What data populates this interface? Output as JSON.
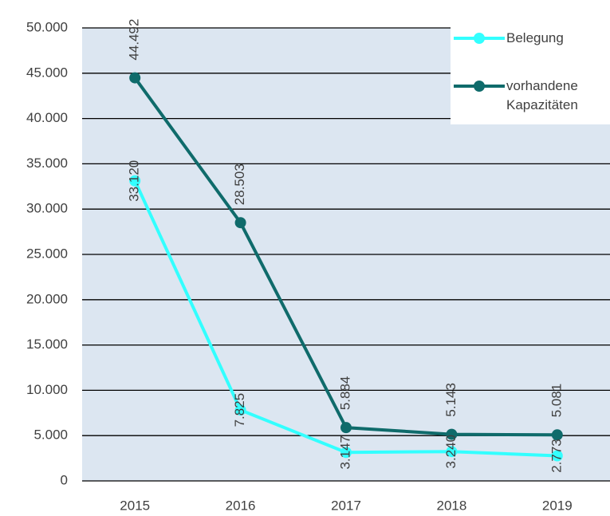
{
  "chart_data": {
    "type": "line",
    "categories": [
      "2015",
      "2016",
      "2017",
      "2018",
      "2019"
    ],
    "series": [
      {
        "name": "Belegung",
        "color": "#33ffff",
        "values": [
          33120,
          7825,
          3147,
          3240,
          2773
        ],
        "value_labels": [
          "33.120",
          "7.825",
          "3.147",
          "3.240",
          "2.773"
        ]
      },
      {
        "name": "vorhandene Kapazitäten",
        "color": "#0f6b6b",
        "values": [
          44492,
          28503,
          5884,
          5143,
          5081
        ],
        "value_labels": [
          "44.492",
          "28.503",
          "5.884",
          "5.143",
          "5.081"
        ]
      }
    ],
    "ylim": [
      0,
      50000
    ],
    "yticks": [
      0,
      {
        "value": 5000,
        "label": "5.000"
      },
      {
        "value": 10000,
        "label": "10.000"
      },
      {
        "value": 15000,
        "label": "15.000"
      },
      {
        "value": 20000,
        "label": "20.000"
      },
      {
        "value": 25000,
        "label": "25.000"
      },
      {
        "value": 30000,
        "label": "30.000"
      },
      {
        "value": 35000,
        "label": "35.000"
      },
      {
        "value": 40000,
        "label": "40.000"
      },
      {
        "value": 45000,
        "label": "45.000"
      },
      {
        "value": 50000,
        "label": "50.000"
      }
    ],
    "grid": true,
    "legend": "upper right",
    "background": "#dce6f1"
  }
}
